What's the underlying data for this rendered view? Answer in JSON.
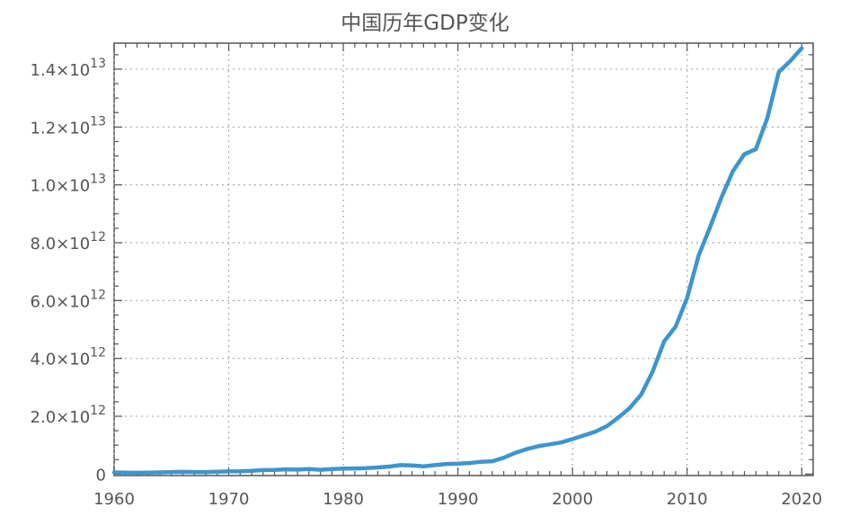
{
  "chart_data": {
    "type": "line",
    "title": "中国历年GDP变化",
    "xlabel": "",
    "ylabel": "",
    "xlim": [
      1960,
      2021
    ],
    "ylim": [
      -50000000000.0,
      14900000000000.0
    ],
    "grid": true,
    "color": "#3e95cd",
    "x_ticks": [
      1960,
      1970,
      1980,
      1990,
      2000,
      2010,
      2020
    ],
    "y_ticks": [
      {
        "value": 0,
        "mantissa": "0",
        "times": "",
        "base": "",
        "exp": ""
      },
      {
        "value": 2000000000000.0,
        "mantissa": "2.0",
        "times": "×",
        "base": "10",
        "exp": "12"
      },
      {
        "value": 4000000000000.0,
        "mantissa": "4.0",
        "times": "×",
        "base": "10",
        "exp": "12"
      },
      {
        "value": 6000000000000.0,
        "mantissa": "6.0",
        "times": "×",
        "base": "10",
        "exp": "12"
      },
      {
        "value": 8000000000000.0,
        "mantissa": "8.0",
        "times": "×",
        "base": "10",
        "exp": "12"
      },
      {
        "value": 10000000000000.0,
        "mantissa": "1.0",
        "times": "×",
        "base": "10",
        "exp": "13"
      },
      {
        "value": 12000000000000.0,
        "mantissa": "1.2",
        "times": "×",
        "base": "10",
        "exp": "13"
      },
      {
        "value": 14000000000000.0,
        "mantissa": "1.4",
        "times": "×",
        "base": "10",
        "exp": "13"
      }
    ],
    "series": [
      {
        "x": [
          1960,
          1961,
          1962,
          1963,
          1964,
          1965,
          1966,
          1967,
          1968,
          1969,
          1970,
          1971,
          1972,
          1973,
          1974,
          1975,
          1976,
          1977,
          1978,
          1979,
          1980,
          1981,
          1982,
          1983,
          1984,
          1985,
          1986,
          1987,
          1988,
          1989,
          1990,
          1991,
          1992,
          1993,
          1994,
          1995,
          1996,
          1997,
          1998,
          1999,
          2000,
          2001,
          2002,
          2003,
          2004,
          2005,
          2006,
          2007,
          2008,
          2009,
          2010,
          2011,
          2012,
          2013,
          2014,
          2015,
          2016,
          2017,
          2018,
          2019,
          2020
        ],
        "y": [
          60000000000.0,
          50000000000.0,
          47000000000.0,
          50000000000.0,
          60000000000.0,
          70000000000.0,
          76000000000.0,
          72000000000.0,
          70000000000.0,
          79000000000.0,
          93000000000.0,
          100000000000.0,
          114000000000.0,
          139000000000.0,
          144000000000.0,
          164000000000.0,
          154000000000.0,
          175000000000.0,
          150000000000.0,
          178000000000.0,
          191000000000.0,
          196000000000.0,
          205000000000.0,
          230000000000.0,
          260000000000.0,
          310000000000.0,
          300000000000.0,
          270000000000.0,
          310000000000.0,
          350000000000.0,
          360000000000.0,
          383000000000.0,
          427000000000.0,
          444000000000.0,
          564000000000.0,
          734000000000.0,
          863000000000.0,
          962000000000.0,
          1029000000000.0,
          1094000000000.0,
          1211000000000.0,
          1339000000000.0,
          1471000000000.0,
          1660000000000.0,
          1955000000000.0,
          2286000000000.0,
          2752000000000.0,
          3550000000000.0,
          4594000000000.0,
          5102000000000.0,
          6087000000000.0,
          7552000000000.0,
          8532000000000.0,
          9570000000000.0,
          10475000000000.0,
          11062000000000.0,
          11233000000000.0,
          12310000000000.0,
          13895000000000.0,
          14280000000000.0,
          14720000000000.0
        ]
      }
    ]
  }
}
